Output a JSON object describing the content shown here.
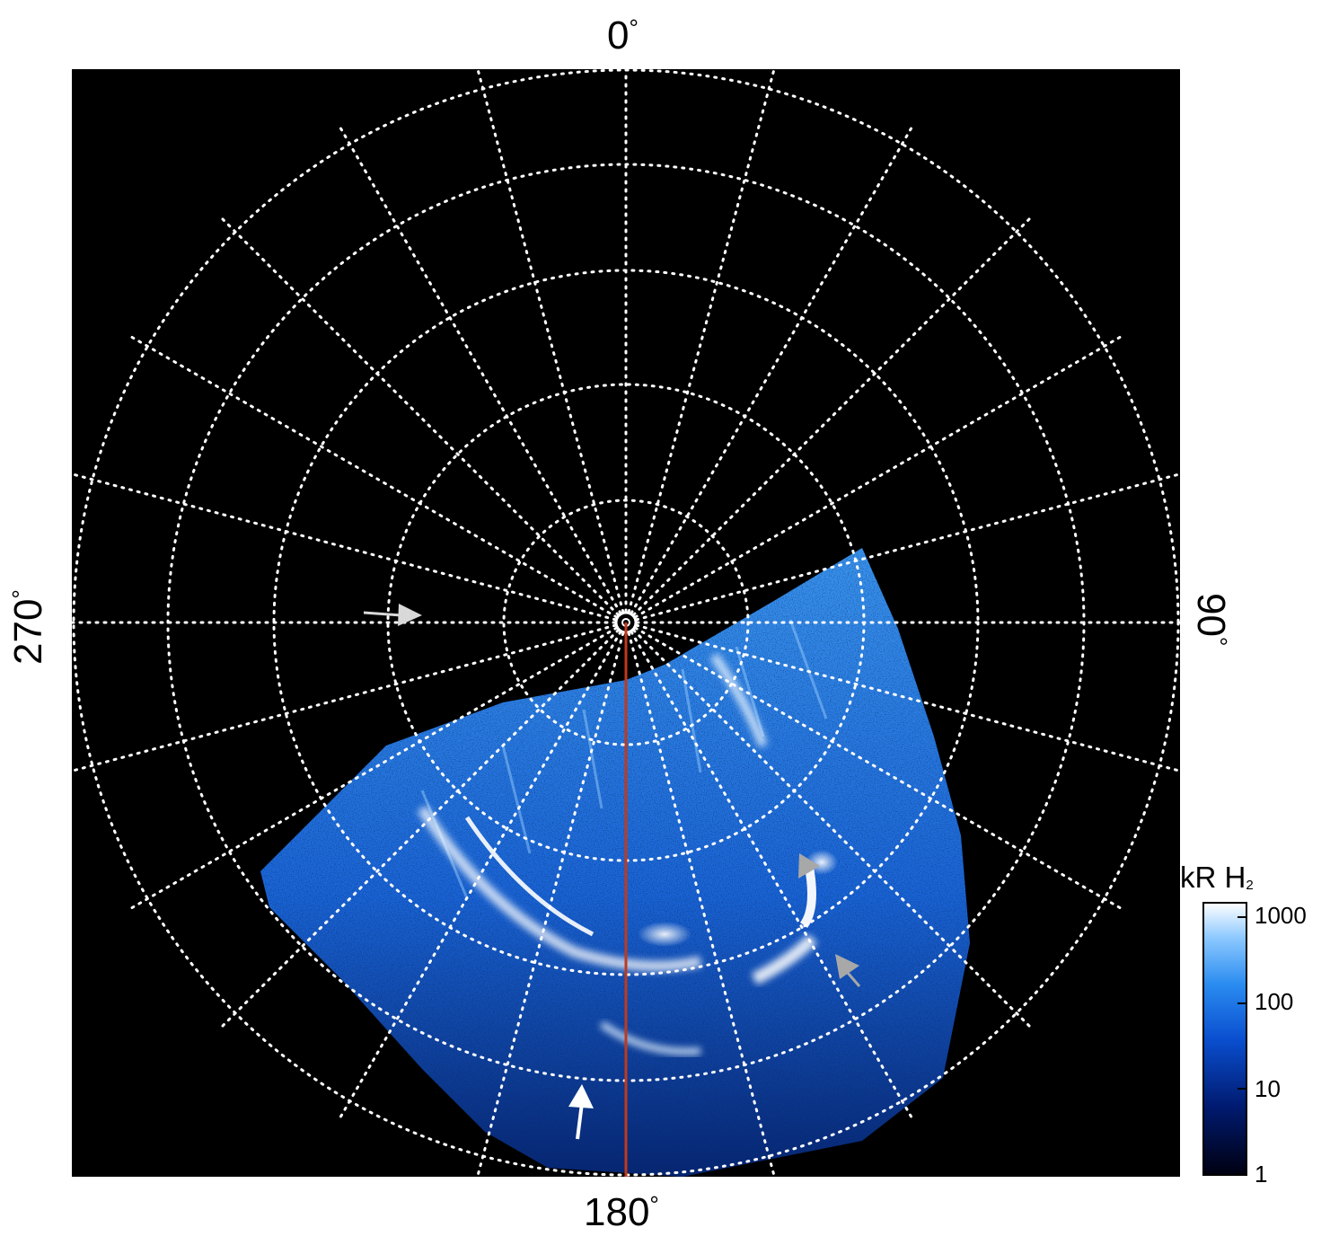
{
  "image": {
    "kind": "polar auroral emission map",
    "background_color": "#000000",
    "grid_color": "#ffffff",
    "meridian_line_color": "#c0391c",
    "emission_color_scale": [
      "#000010",
      "#001a70",
      "#0a4fd0",
      "#2a8cf0",
      "#8cc8ff",
      "#ffffff"
    ]
  },
  "axis_labels": {
    "top": "0",
    "right": "90",
    "bottom": "180",
    "left": "270",
    "degree_symbol": "°"
  },
  "colorbar": {
    "title": "kR H",
    "title_subscript": "2",
    "scale": "log",
    "ticks": [
      "1000",
      "100",
      "10",
      "1"
    ],
    "range": [
      1,
      1500
    ]
  },
  "annotations": {
    "arrows": [
      {
        "name": "left-arrow",
        "color": "#d9d9d9"
      },
      {
        "name": "bottom-arrow",
        "color": "#ffffff"
      },
      {
        "name": "gray-arrowhead-upper",
        "color": "#a8a8a8"
      },
      {
        "name": "gray-arrowhead-lower",
        "color": "#a8a8a8"
      }
    ]
  }
}
